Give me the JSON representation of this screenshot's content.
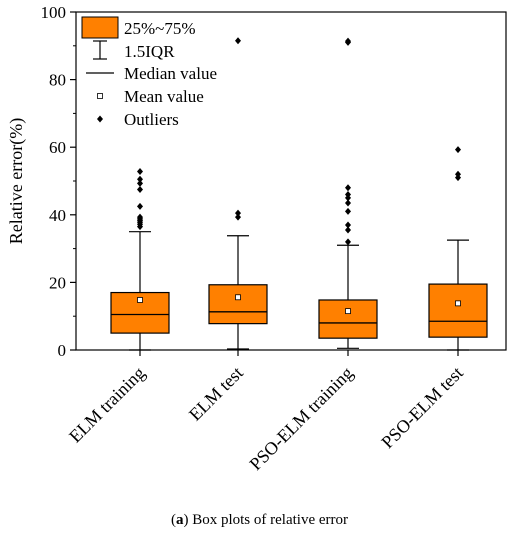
{
  "chart_data": {
    "type": "box",
    "ylabel": "Relative error(%)",
    "ylim": [
      0,
      100
    ],
    "yticks": [
      0,
      20,
      40,
      60,
      80,
      100
    ],
    "categories": [
      "ELM training",
      "ELM test",
      "PSO-ELM training",
      "PSO-ELM test"
    ],
    "boxes": [
      {
        "category": "ELM training",
        "whisker_low": 0,
        "q1": 5,
        "median": 10.5,
        "q3": 17,
        "whisker_high": 35,
        "mean": 14.8,
        "outliers": [
          36.5,
          37.2,
          37.8,
          38.3,
          38.8,
          39.3,
          42.5,
          47.5,
          49.3,
          50.5,
          52.8
        ]
      },
      {
        "category": "ELM test",
        "whisker_low": 0.3,
        "q1": 7.8,
        "median": 11.3,
        "q3": 19.3,
        "whisker_high": 33.8,
        "mean": 15.6,
        "outliers": [
          39.3,
          40.5,
          91.5
        ]
      },
      {
        "category": "PSO-ELM training",
        "whisker_low": 0.5,
        "q1": 3.5,
        "median": 8,
        "q3": 14.8,
        "whisker_high": 31,
        "mean": 11.5,
        "outliers": [
          32,
          35.5,
          37,
          41,
          43.5,
          45,
          46,
          48,
          91,
          91.4
        ]
      },
      {
        "category": "PSO-ELM test",
        "whisker_low": 0,
        "q1": 3.8,
        "median": 8.5,
        "q3": 19.5,
        "whisker_high": 32.5,
        "mean": 13.8,
        "outliers": [
          51,
          52,
          59.3
        ]
      }
    ],
    "legend": {
      "position": "top-left",
      "entries": [
        {
          "key": "box",
          "label": "25%~75%"
        },
        {
          "key": "iqr",
          "label": "1.5IQR"
        },
        {
          "key": "median",
          "label": "Median value"
        },
        {
          "key": "mean",
          "label": "Mean value"
        },
        {
          "key": "outlier",
          "label": "Outliers"
        }
      ]
    },
    "colors": {
      "box_fill": "#ff8000",
      "stroke": "#000000"
    }
  },
  "caption": {
    "label": "a",
    "text": " Box plots of relative error"
  }
}
